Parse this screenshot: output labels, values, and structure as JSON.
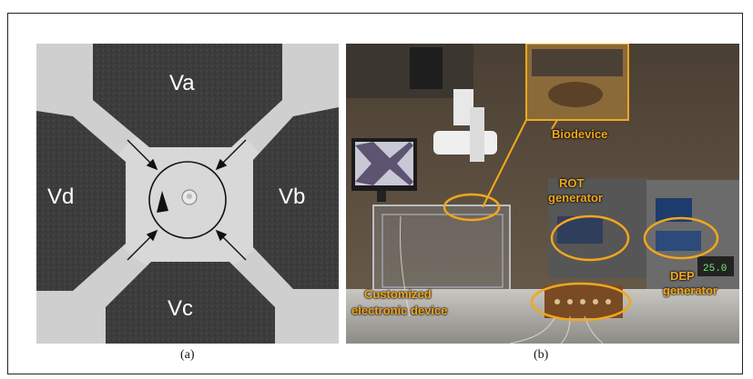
{
  "panel_a": {
    "electrodes": {
      "top": "Va",
      "right": "Vb",
      "bottom": "Vc",
      "left": "Vd"
    },
    "caption": "(a)"
  },
  "panel_b": {
    "labels": {
      "biodevice": "Biodevice",
      "rot_generator_line1": "ROT",
      "rot_generator_line2": "generator",
      "dep_generator_line1": "DEP",
      "dep_generator_line2": "generator",
      "custom_device_line1": "Customized",
      "custom_device_line2": "electronic device"
    },
    "caption": "(b)"
  },
  "colors": {
    "annotation": "#f2a71d",
    "electrode": "#3a3a3a",
    "channel": "#cfcfcf"
  }
}
